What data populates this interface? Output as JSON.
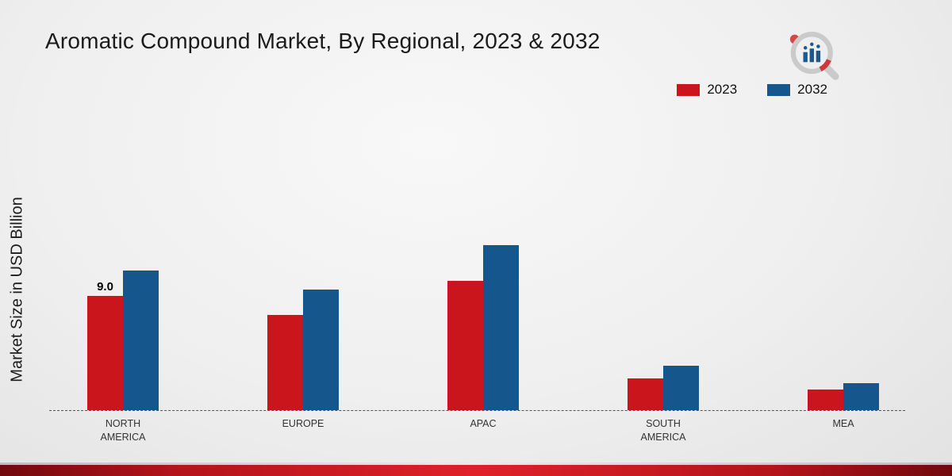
{
  "title": "Aromatic Compound Market, By Regional, 2023 & 2032",
  "ylabel": "Market Size in USD Billion",
  "legend": [
    {
      "label": "2023",
      "color": "#c9151b"
    },
    {
      "label": "2032",
      "color": "#15568d"
    }
  ],
  "icons": {
    "brand_logo": "magnifier-bar-chart-logo"
  },
  "colors": {
    "bar_2023": "#c9151b",
    "bar_2032": "#15568d",
    "footer_bar": "#cc1218",
    "background": "#efefef"
  },
  "chart_data": {
    "type": "bar",
    "title": "Aromatic Compound Market, By Regional, 2023 & 2032",
    "xlabel": "",
    "ylabel": "Market Size in USD Billion",
    "categories": [
      "NORTH AMERICA",
      "EUROPE",
      "APAC",
      "SOUTH AMERICA",
      "MEA"
    ],
    "series": [
      {
        "name": "2023",
        "color": "#c9151b",
        "values": [
          9.0,
          7.5,
          10.2,
          2.5,
          1.6
        ]
      },
      {
        "name": "2032",
        "color": "#15568d",
        "values": [
          11.0,
          9.5,
          13.0,
          3.5,
          2.1
        ]
      }
    ],
    "data_labels": [
      {
        "series": "2023",
        "category": "NORTH AMERICA",
        "text": "9.0"
      }
    ],
    "ylim": [
      0,
      24
    ],
    "grid": false,
    "legend_position": "top-right",
    "baseline_style": "dashed"
  }
}
